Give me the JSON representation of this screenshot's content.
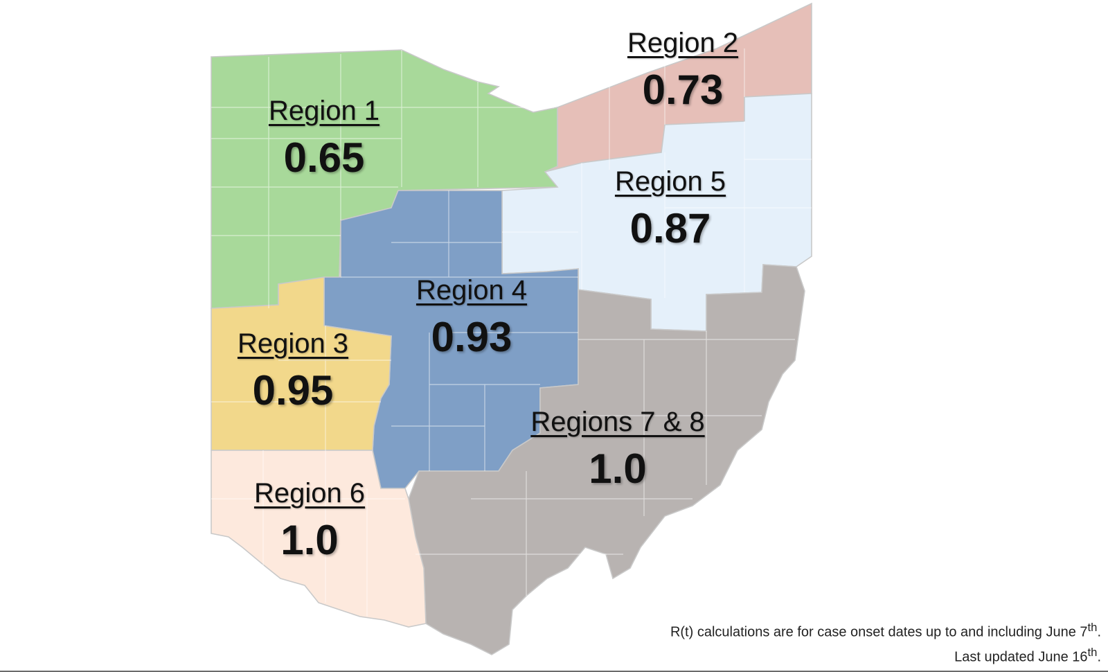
{
  "map": {
    "regions": [
      {
        "id": "region-1",
        "name": "Region 1",
        "value": "0.65",
        "color": "#a8d99a"
      },
      {
        "id": "region-2",
        "name": "Region 2",
        "value": "0.73",
        "color": "#e6bfb8"
      },
      {
        "id": "region-3",
        "name": "Region 3",
        "value": "0.95",
        "color": "#f2d88b"
      },
      {
        "id": "region-4",
        "name": "Region 4",
        "value": "0.93",
        "color": "#7f9fc6"
      },
      {
        "id": "region-5",
        "name": "Region 5",
        "value": "0.87",
        "color": "#e5f0fa"
      },
      {
        "id": "region-6",
        "name": "Region 6",
        "value": "1.0",
        "color": "#fde9dd"
      },
      {
        "id": "regions-7-8",
        "name": "Regions 7 & 8",
        "value": "1.0",
        "color": "#b8b3b1"
      }
    ]
  },
  "footnote": {
    "line1_text": "R(t) calculations are for case onset dates up to and including June 7",
    "line1_sup": "th",
    "line1_end": ".",
    "line2_text": "Last updated June 16",
    "line2_sup": "th",
    "line2_end": "."
  }
}
